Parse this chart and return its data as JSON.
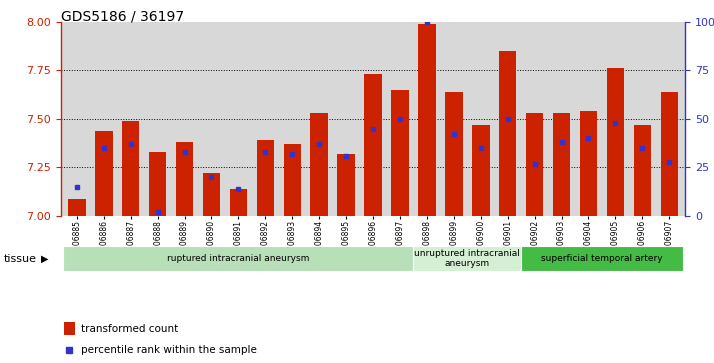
{
  "title": "GDS5186 / 36197",
  "samples": [
    "GSM1306885",
    "GSM1306886",
    "GSM1306887",
    "GSM1306888",
    "GSM1306889",
    "GSM1306890",
    "GSM1306891",
    "GSM1306892",
    "GSM1306893",
    "GSM1306894",
    "GSM1306895",
    "GSM1306896",
    "GSM1306897",
    "GSM1306898",
    "GSM1306899",
    "GSM1306900",
    "GSM1306901",
    "GSM1306902",
    "GSM1306903",
    "GSM1306904",
    "GSM1306905",
    "GSM1306906",
    "GSM1306907"
  ],
  "transformed_count": [
    7.09,
    7.44,
    7.49,
    7.33,
    7.38,
    7.22,
    7.14,
    7.39,
    7.37,
    7.53,
    7.32,
    7.73,
    7.65,
    7.99,
    7.64,
    7.47,
    7.85,
    7.53,
    7.53,
    7.54,
    7.76,
    7.47,
    7.64
  ],
  "percentile_rank": [
    15,
    35,
    37,
    2,
    33,
    20,
    14,
    33,
    32,
    37,
    31,
    45,
    50,
    100,
    42,
    35,
    50,
    27,
    38,
    40,
    48,
    35,
    28
  ],
  "ylim_left": [
    7.0,
    8.0
  ],
  "ylim_right": [
    0,
    100
  ],
  "yticks_left": [
    7.0,
    7.25,
    7.5,
    7.75,
    8.0
  ],
  "yticks_right": [
    0,
    25,
    50,
    75,
    100
  ],
  "bar_color": "#cc2200",
  "dot_color": "#3333cc",
  "groups": [
    {
      "label": "ruptured intracranial aneurysm",
      "start": 0,
      "end": 13,
      "color": "#b8e0b8"
    },
    {
      "label": "unruptured intracranial\naneurysm",
      "start": 13,
      "end": 17,
      "color": "#d4efd4"
    },
    {
      "label": "superficial temporal artery",
      "start": 17,
      "end": 23,
      "color": "#44bb44"
    }
  ],
  "tissue_label": "tissue",
  "legend_entries": [
    "transformed count",
    "percentile rank within the sample"
  ],
  "plot_bg": "#d8d8d8",
  "title_fontsize": 10
}
